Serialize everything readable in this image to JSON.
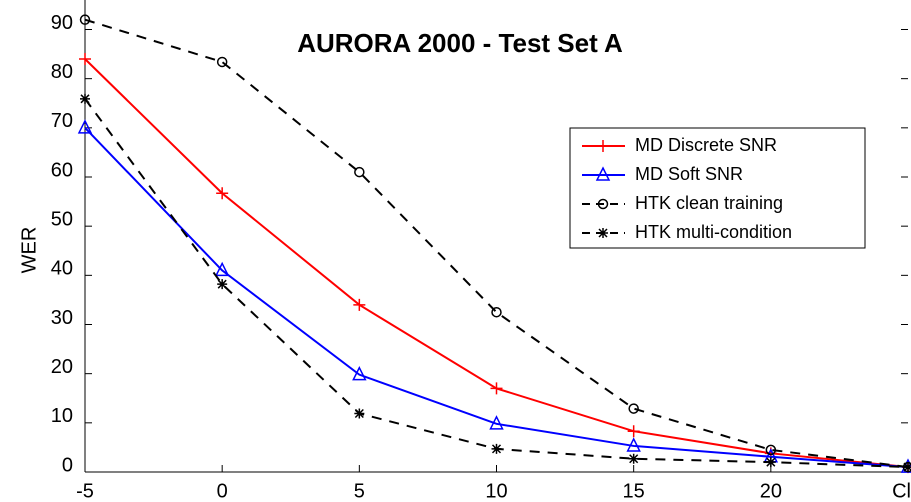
{
  "chart_data": {
    "type": "line",
    "title": "AURORA 2000 - Test Set A",
    "y_label": "WER",
    "categories": [
      "-5",
      "0",
      "5",
      "10",
      "15",
      "20",
      "Cl"
    ],
    "ylim": [
      0,
      96
    ],
    "yticks": [
      0,
      10,
      20,
      30,
      40,
      50,
      60,
      70,
      80,
      90
    ],
    "grid": false,
    "legend": "upper right",
    "series": [
      {
        "name": "MD Discrete SNR",
        "color": "#ff0000",
        "linestyle": "solid",
        "marker": "plus",
        "values": [
          84,
          56.7,
          34,
          17,
          8.3,
          3.8,
          1
        ]
      },
      {
        "name": "MD Soft SNR",
        "color": "#0000ff",
        "linestyle": "solid",
        "marker": "triangle",
        "values": [
          70,
          41,
          19.8,
          9.8,
          5.3,
          3.1,
          1
        ]
      },
      {
        "name": "HTK clean training",
        "color": "#000000",
        "linestyle": "dashed",
        "marker": "circle",
        "values": [
          92,
          83.4,
          61,
          32.5,
          12.9,
          4.5,
          1
        ]
      },
      {
        "name": "HTK multi-condition",
        "color": "#000000",
        "linestyle": "dashed",
        "marker": "star",
        "values": [
          75.9,
          38.2,
          11.9,
          4.7,
          2.7,
          2,
          1
        ]
      }
    ]
  }
}
